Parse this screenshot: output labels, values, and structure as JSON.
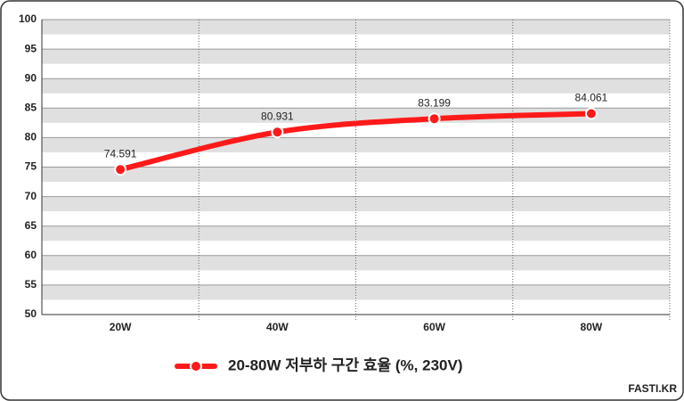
{
  "chart_data": {
    "type": "line",
    "categories": [
      "20W",
      "40W",
      "60W",
      "80W"
    ],
    "series": [
      {
        "name": "20-80W 저부하 구간 효율 (%, 230V)",
        "color": "#ff1a1a",
        "values": [
          74.591,
          80.931,
          83.199,
          84.061
        ]
      }
    ],
    "ylim": [
      50,
      100
    ],
    "yticks": [
      50,
      55,
      60,
      65,
      70,
      75,
      80,
      85,
      90,
      95,
      100
    ],
    "grid": true,
    "legend": "bottom",
    "watermark": "FASTI.KR"
  }
}
